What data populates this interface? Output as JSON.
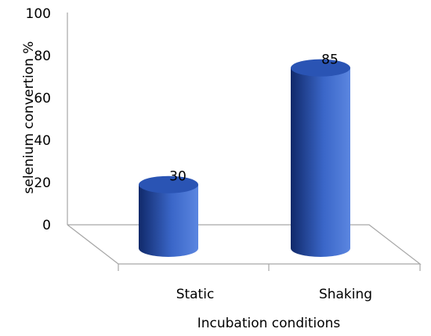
{
  "chart_data": {
    "type": "bar",
    "style": "3d-cylinder",
    "categories": [
      "Static",
      "Shaking"
    ],
    "values": [
      30,
      85
    ],
    "data_labels": [
      "30",
      "85"
    ],
    "xlabel": "Incubation conditions",
    "ylabel": "selenium  convertion %",
    "ylim": [
      0,
      100
    ],
    "yticks": [
      "0",
      "20",
      "40",
      "60",
      "80",
      "100"
    ],
    "grid": false,
    "legend": "none",
    "colors": {
      "bar_dark": "#10296a",
      "bar_mid": "#3a66c8",
      "bar_light": "#5b86e0",
      "bar_top": "#2a54b4",
      "axis": "#a6a6a6"
    }
  }
}
